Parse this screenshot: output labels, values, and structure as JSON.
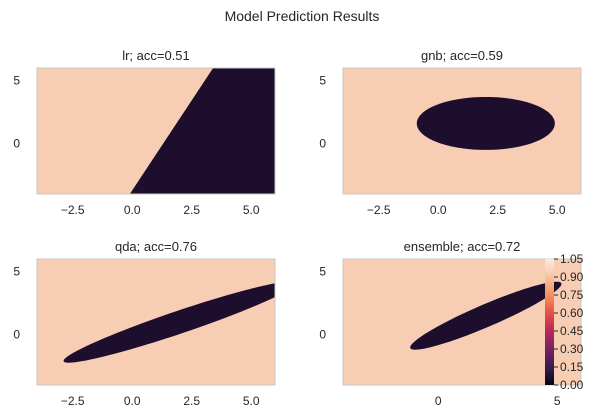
{
  "figure": {
    "suptitle": "Model Prediction Results"
  },
  "colors": {
    "class0": "#f7cdb3",
    "class1": "#1d0e2d",
    "frame": "#c8c8c8",
    "text": "#262626"
  },
  "chart_data": [
    {
      "type": "heatmap",
      "title": "lr; acc=0.51",
      "xlim": [
        -4,
        6
      ],
      "ylim": [
        -4,
        6
      ],
      "xticks": [
        -2.5,
        0.0,
        2.5,
        5.0
      ],
      "xtick_labels": [
        "−2.5",
        "0.0",
        "2.5",
        "5.0"
      ],
      "yticks": [
        5,
        0
      ],
      "ytick_labels": [
        "5",
        "0"
      ],
      "class1_region": {
        "shape": "halfplane",
        "boundary_points": [
          [
            -0.1,
            -4
          ],
          [
            3.4,
            6
          ]
        ],
        "side": "right"
      }
    },
    {
      "type": "heatmap",
      "title": "gnb; acc=0.59",
      "xlim": [
        -4,
        6
      ],
      "ylim": [
        -4,
        6
      ],
      "xticks": [
        -2.5,
        0.0,
        2.5,
        5.0
      ],
      "xtick_labels": [
        "−2.5",
        "0.0",
        "2.5",
        "5.0"
      ],
      "yticks": [
        5,
        0
      ],
      "ytick_labels": [
        "5",
        "0"
      ],
      "class1_region": {
        "shape": "ellipse",
        "center": [
          2.0,
          1.6
        ],
        "semi_axes": [
          2.9,
          2.1
        ],
        "angle_deg": 0
      }
    },
    {
      "type": "heatmap",
      "title": "qda; acc=0.76",
      "xlim": [
        -4,
        6
      ],
      "ylim": [
        -4,
        6
      ],
      "xticks": [
        -2.5,
        0.0,
        2.5,
        5.0
      ],
      "xtick_labels": [
        "−2.5",
        "0.0",
        "2.5",
        "5.0"
      ],
      "yticks": [
        5,
        0
      ],
      "ytick_labels": [
        "5",
        "0"
      ],
      "class1_region": {
        "shape": "ellipse",
        "center": [
          2.0,
          1.0
        ],
        "semi_axes": [
          5.8,
          0.8
        ],
        "angle_deg": 33
      }
    },
    {
      "type": "heatmap",
      "title": "ensemble; acc=0.72",
      "xlim": [
        -4,
        6
      ],
      "ylim": [
        -4,
        6
      ],
      "xticks": [
        0,
        5
      ],
      "xtick_labels": [
        "0",
        "5"
      ],
      "yticks": [
        5,
        0
      ],
      "ytick_labels": [
        "5",
        "0"
      ],
      "class1_region": {
        "shape": "ellipse",
        "center": [
          2.0,
          1.5
        ],
        "semi_axes": [
          4.1,
          0.75
        ],
        "angle_deg": 40
      }
    }
  ],
  "colorbar": {
    "range": [
      0.0,
      1.05
    ],
    "ticks": [
      1.05,
      0.9,
      0.75,
      0.6,
      0.45,
      0.3,
      0.15,
      0.0
    ],
    "tick_labels": [
      "1.05",
      "0.90",
      "0.75",
      "0.60",
      "0.45",
      "0.30",
      "0.15",
      "0.00"
    ],
    "colormap": [
      "#03051a",
      "#2b1a44",
      "#5b1f5e",
      "#8c2463",
      "#bd2c57",
      "#e04a45",
      "#f17e52",
      "#f5a876",
      "#f7cdb3",
      "#faebdd"
    ]
  }
}
